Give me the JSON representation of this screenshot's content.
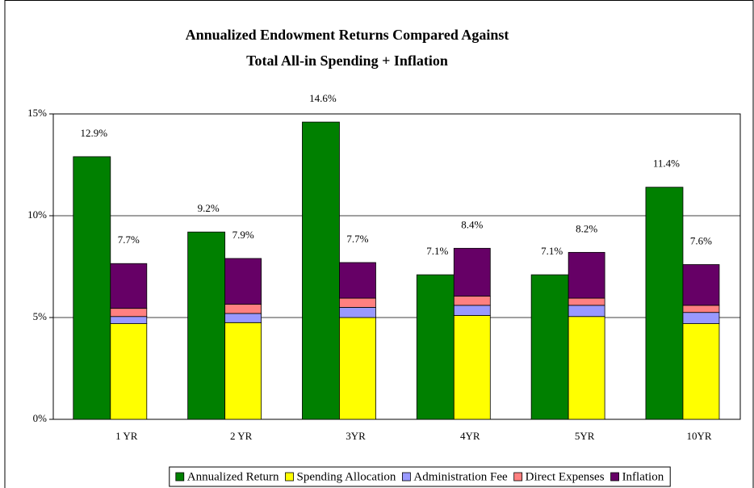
{
  "chart_data": {
    "type": "bar",
    "title": [
      "Annualized Endowment Returns Compared Against",
      "Total All-in Spending + Inflation"
    ],
    "categories": [
      "1 YR",
      "2 YR",
      "3YR",
      "4YR",
      "5YR",
      "10YR"
    ],
    "series": [
      {
        "name": "Annualized Return",
        "color": "#008000",
        "values": [
          12.9,
          9.2,
          14.6,
          7.1,
          7.1,
          11.4
        ],
        "value_labels": [
          "12.9%",
          "9.2%",
          "14.6%",
          "7.1%",
          "7.1%",
          "11.4%"
        ]
      },
      {
        "name": "Spending Allocation",
        "color": "#ffff00",
        "stacked": true,
        "values": [
          4.7,
          4.75,
          5.0,
          5.1,
          5.05,
          4.7
        ]
      },
      {
        "name": "Administration Fee",
        "color": "#9999ff",
        "stacked": true,
        "values": [
          0.35,
          0.45,
          0.5,
          0.5,
          0.55,
          0.55
        ]
      },
      {
        "name": "Direct Expenses",
        "color": "#ff8080",
        "stacked": true,
        "values": [
          0.4,
          0.45,
          0.45,
          0.45,
          0.35,
          0.35
        ]
      },
      {
        "name": "Inflation",
        "color": "#660066",
        "stacked": true,
        "values": [
          2.2,
          2.25,
          1.75,
          2.35,
          2.25,
          2.0
        ]
      }
    ],
    "stack_total_labels": [
      "7.7%",
      "7.9%",
      "7.7%",
      "8.4%",
      "8.2%",
      "7.6%"
    ],
    "ylim": [
      0,
      15
    ],
    "yticks": [
      {
        "value": 0,
        "label": "0%"
      },
      {
        "value": 5,
        "label": "5%"
      },
      {
        "value": 10,
        "label": "10%"
      },
      {
        "value": 15,
        "label": "15%"
      }
    ],
    "grid": true,
    "legend": "bottom"
  }
}
